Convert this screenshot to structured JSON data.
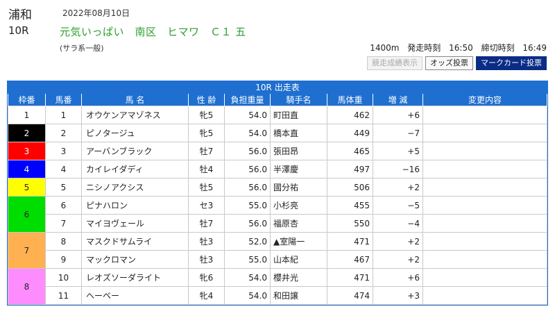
{
  "header": {
    "venue": "浦和",
    "date": "2022年08月10日",
    "race_no": "10R",
    "race_name": "元気いっぱい　南区　ヒマワ　Ｃ１ 五",
    "race_class": "(サラ系一般)",
    "distance": "1400m",
    "start_label": "発走時刻",
    "start_time": "16:50",
    "close_label": "締切時刻",
    "close_time": "16:49"
  },
  "buttons": {
    "results": "競走成績表示",
    "odds": "オッズ投票",
    "markcard": "マークカード投票"
  },
  "table": {
    "title": "10R 出走表",
    "headers": [
      "枠番",
      "馬番",
      "馬 名",
      "性 齢",
      "負担重量",
      "騎手名",
      "馬体重",
      "増 減",
      "変更内容"
    ],
    "frames": [
      {
        "no": "1",
        "bg": "#ffffff",
        "fg": "#222222",
        "rows": 1
      },
      {
        "no": "2",
        "bg": "#000000",
        "fg": "#ffffff",
        "rows": 1
      },
      {
        "no": "3",
        "bg": "#ff0000",
        "fg": "#ffffff",
        "rows": 1
      },
      {
        "no": "4",
        "bg": "#0000ff",
        "fg": "#ffffff",
        "rows": 1
      },
      {
        "no": "5",
        "bg": "#ffff00",
        "fg": "#222222",
        "rows": 1
      },
      {
        "no": "6",
        "bg": "#00dd00",
        "fg": "#222222",
        "rows": 2
      },
      {
        "no": "7",
        "bg": "#ffb050",
        "fg": "#222222",
        "rows": 2
      },
      {
        "no": "8",
        "bg": "#ff8cff",
        "fg": "#222222",
        "rows": 2
      }
    ],
    "rows": [
      {
        "horse_no": "1",
        "name": "オウケンアマゾネス",
        "sex_age": "牝5",
        "weight": "54.0",
        "jockey": "町田直",
        "body_weight": "462",
        "diff": "+6",
        "change": ""
      },
      {
        "horse_no": "2",
        "name": "ピノタージュ",
        "sex_age": "牝5",
        "weight": "54.0",
        "jockey": "橋本直",
        "body_weight": "449",
        "diff": "−7",
        "change": ""
      },
      {
        "horse_no": "3",
        "name": "アーバンブラック",
        "sex_age": "牡7",
        "weight": "56.0",
        "jockey": "張田昂",
        "body_weight": "465",
        "diff": "+5",
        "change": ""
      },
      {
        "horse_no": "4",
        "name": "カイレイダディ",
        "sex_age": "牡4",
        "weight": "56.0",
        "jockey": "半澤慶",
        "body_weight": "497",
        "diff": "−16",
        "change": ""
      },
      {
        "horse_no": "5",
        "name": "ニシノアクシス",
        "sex_age": "牡5",
        "weight": "56.0",
        "jockey": "國分祐",
        "body_weight": "506",
        "diff": "+2",
        "change": ""
      },
      {
        "horse_no": "6",
        "name": "ピナハロン",
        "sex_age": "セ3",
        "weight": "55.0",
        "jockey": "小杉亮",
        "body_weight": "455",
        "diff": "−5",
        "change": ""
      },
      {
        "horse_no": "7",
        "name": "マイヨヴェール",
        "sex_age": "牡7",
        "weight": "56.0",
        "jockey": "福原杏",
        "body_weight": "550",
        "diff": "−4",
        "change": ""
      },
      {
        "horse_no": "8",
        "name": "マスクドサムライ",
        "sex_age": "牡3",
        "weight": "52.0",
        "jockey": "▲室陽一",
        "body_weight": "471",
        "diff": "+2",
        "change": ""
      },
      {
        "horse_no": "9",
        "name": "マックロマン",
        "sex_age": "牡3",
        "weight": "55.0",
        "jockey": "山本紀",
        "body_weight": "467",
        "diff": "+2",
        "change": ""
      },
      {
        "horse_no": "10",
        "name": "レオズソーダライト",
        "sex_age": "牝6",
        "weight": "54.0",
        "jockey": "櫻井光",
        "body_weight": "471",
        "diff": "+6",
        "change": ""
      },
      {
        "horse_no": "11",
        "name": "ヘーベー",
        "sex_age": "牝4",
        "weight": "54.0",
        "jockey": "和田譲",
        "body_weight": "474",
        "diff": "+3",
        "change": ""
      }
    ]
  }
}
